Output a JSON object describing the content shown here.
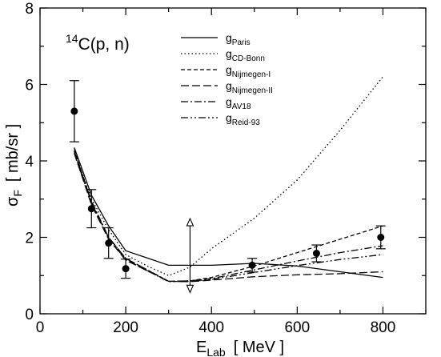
{
  "chart_data": {
    "type": "line",
    "annotation": {
      "prefix": "14",
      "text": "C(p, n)"
    },
    "xlabel": {
      "main": "E",
      "sub": "Lab",
      "unit": "[ MeV ]"
    },
    "ylabel": {
      "main": "σ",
      "sub": "F",
      "unit": "[ mb/sr ]"
    },
    "xlim": [
      0,
      900
    ],
    "ylim": [
      0,
      8
    ],
    "xticks": [
      0,
      200,
      400,
      600,
      800
    ],
    "yticks": [
      0,
      2,
      4,
      6,
      8
    ],
    "grid": false,
    "legend_position": "top-center",
    "series": [
      {
        "name": "g",
        "sub": "Paris",
        "dash": "none",
        "x": [
          80,
          120,
          160,
          200,
          300,
          350,
          400,
          500,
          600,
          700,
          800
        ],
        "y": [
          4.35,
          3.1,
          2.3,
          1.65,
          1.27,
          1.27,
          1.27,
          1.32,
          1.25,
          1.1,
          0.95
        ]
      },
      {
        "name": "g",
        "sub": "CD-Bonn",
        "dash": "1.5,3",
        "x": [
          80,
          120,
          160,
          200,
          250,
          300,
          350,
          400,
          500,
          600,
          700,
          800
        ],
        "y": [
          4.25,
          3.0,
          2.2,
          1.55,
          1.25,
          1.0,
          1.22,
          1.7,
          2.5,
          3.5,
          4.8,
          6.2
        ]
      },
      {
        "name": "g",
        "sub": "Nijmegen-I",
        "dash": "5,3",
        "x": [
          80,
          120,
          160,
          200,
          300,
          350,
          400,
          500,
          600,
          700,
          800
        ],
        "y": [
          4.3,
          2.9,
          2.0,
          1.45,
          0.85,
          0.86,
          0.95,
          1.25,
          1.6,
          1.95,
          2.3
        ]
      },
      {
        "name": "g",
        "sub": "Nijmegen-II",
        "dash": "10,4",
        "x": [
          80,
          120,
          160,
          200,
          300,
          350,
          400,
          500,
          600,
          700,
          800
        ],
        "y": [
          4.2,
          2.85,
          1.95,
          1.4,
          0.85,
          0.84,
          0.88,
          0.97,
          1.02,
          1.05,
          1.1
        ]
      },
      {
        "name": "g",
        "sub": "AV18",
        "dash": "9,3,2,3",
        "x": [
          80,
          120,
          160,
          200,
          300,
          350,
          400,
          500,
          600,
          700,
          800
        ],
        "y": [
          4.25,
          2.95,
          2.0,
          1.45,
          0.85,
          0.86,
          0.92,
          1.15,
          1.38,
          1.6,
          1.78
        ]
      },
      {
        "name": "g",
        "sub": "Reid-93",
        "dash": "9,3,2,3,2,3",
        "x": [
          80,
          120,
          160,
          200,
          300,
          350,
          400,
          500,
          600,
          700,
          800
        ],
        "y": [
          4.2,
          2.9,
          1.98,
          1.42,
          0.84,
          0.85,
          0.9,
          1.08,
          1.26,
          1.42,
          1.55
        ]
      }
    ],
    "data_points": [
      {
        "x": 80,
        "y": 5.3,
        "err": 0.8
      },
      {
        "x": 120,
        "y": 2.75,
        "err": 0.5
      },
      {
        "x": 160,
        "y": 1.85,
        "err": 0.4
      },
      {
        "x": 200,
        "y": 1.18,
        "err": 0.25
      },
      {
        "x": 495,
        "y": 1.27,
        "err": 0.18
      },
      {
        "x": 645,
        "y": 1.58,
        "err": 0.22
      },
      {
        "x": 795,
        "y": 2.0,
        "err": 0.3
      }
    ],
    "range_marker": {
      "x": 350,
      "y_low": 0.6,
      "y_high": 2.45
    }
  }
}
